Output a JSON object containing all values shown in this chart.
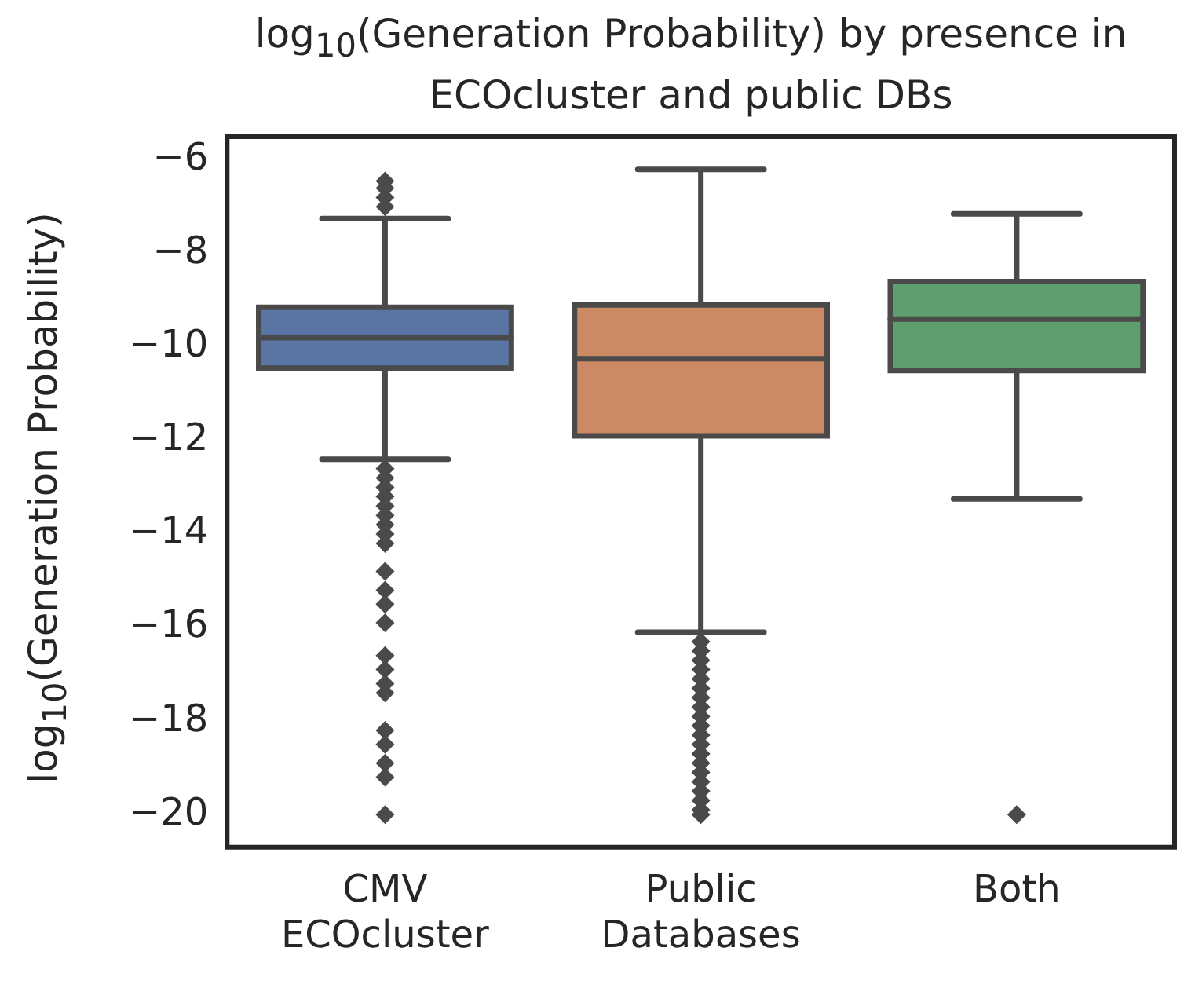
{
  "chart_data": {
    "type": "box",
    "title": "log$_{10}$(Generation Probability) by presence in ECOcluster and public DBs",
    "ylabel": "log$_{10}$(Generation Probability)",
    "categories": [
      "CMV ECOcluster",
      "Public Databases",
      "Both"
    ],
    "colors": [
      "#5875a4",
      "#cc8963",
      "#5f9e6e"
    ],
    "boxes": [
      {
        "low": -7.25,
        "q1": -9.15,
        "median": -9.8,
        "q3": -10.45,
        "high": -12.4,
        "outliers": [
          -6.45,
          -6.6,
          -6.8,
          -7.0,
          -12.6,
          -12.8,
          -13.0,
          -13.2,
          -13.4,
          -13.6,
          -13.8,
          -14.0,
          -14.2,
          -14.8,
          -15.2,
          -15.5,
          -15.9,
          -16.6,
          -16.9,
          -17.2,
          -17.4,
          -18.2,
          -18.5,
          -18.9,
          -19.2,
          -20.0
        ]
      },
      {
        "low": -6.2,
        "q1": -9.1,
        "median": -10.25,
        "q3": -11.9,
        "high": -16.1,
        "outliers": [
          -16.3,
          -16.5,
          -16.7,
          -16.9,
          -17.1,
          -17.3,
          -17.5,
          -17.7,
          -17.9,
          -18.1,
          -18.3,
          -18.5,
          -18.7,
          -18.9,
          -19.1,
          -19.3,
          -19.5,
          -19.7,
          -19.9,
          -20.0
        ]
      },
      {
        "low": -7.15,
        "q1": -8.6,
        "median": -9.4,
        "q3": -10.5,
        "high": -13.25,
        "outliers": [
          -20.0
        ]
      }
    ],
    "marker": "diamond",
    "ylim": [
      -20.7,
      -5.5
    ],
    "yticks": [
      -6,
      -8,
      -10,
      -12,
      -14,
      -16,
      -18,
      -20
    ]
  }
}
